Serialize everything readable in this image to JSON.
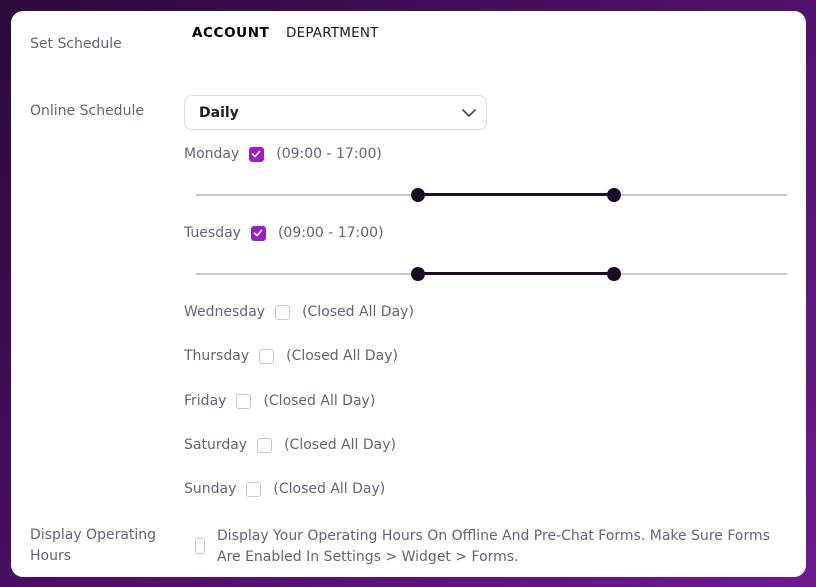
{
  "labels": {
    "set_schedule": "Set Schedule",
    "online_schedule": "Online Schedule",
    "display_operating_hours_line1": "Display Operating",
    "display_operating_hours_line2": "Hours"
  },
  "tabs": [
    {
      "label": "ACCOUNT",
      "active": true
    },
    {
      "label": "DEPARTMENT",
      "active": false
    }
  ],
  "schedule_select": {
    "value": "Daily"
  },
  "days": [
    {
      "name": "Monday",
      "checked": true,
      "hours": "(09:00 - 17:00)",
      "range_start": 0.375,
      "range_end": 0.708
    },
    {
      "name": "Tuesday",
      "checked": true,
      "hours": "(09:00 - 17:00)",
      "range_start": 0.375,
      "range_end": 0.708
    },
    {
      "name": "Wednesday",
      "checked": false,
      "hours": "(Closed All Day)"
    },
    {
      "name": "Thursday",
      "checked": false,
      "hours": "(Closed All Day)"
    },
    {
      "name": "Friday",
      "checked": false,
      "hours": "(Closed All Day)"
    },
    {
      "name": "Saturday",
      "checked": false,
      "hours": "(Closed All Day)"
    },
    {
      "name": "Sunday",
      "checked": false,
      "hours": "(Closed All Day)"
    }
  ],
  "display_option": {
    "checked": false,
    "text": "Display Your Operating Hours On Offline And Pre-Chat Forms. Make Sure Forms Are Enabled In Settings > Widget > Forms."
  },
  "colors": {
    "accent": "#9b1fc7",
    "slider_fill": "#1a0a25",
    "track": "#c6c8cf"
  }
}
